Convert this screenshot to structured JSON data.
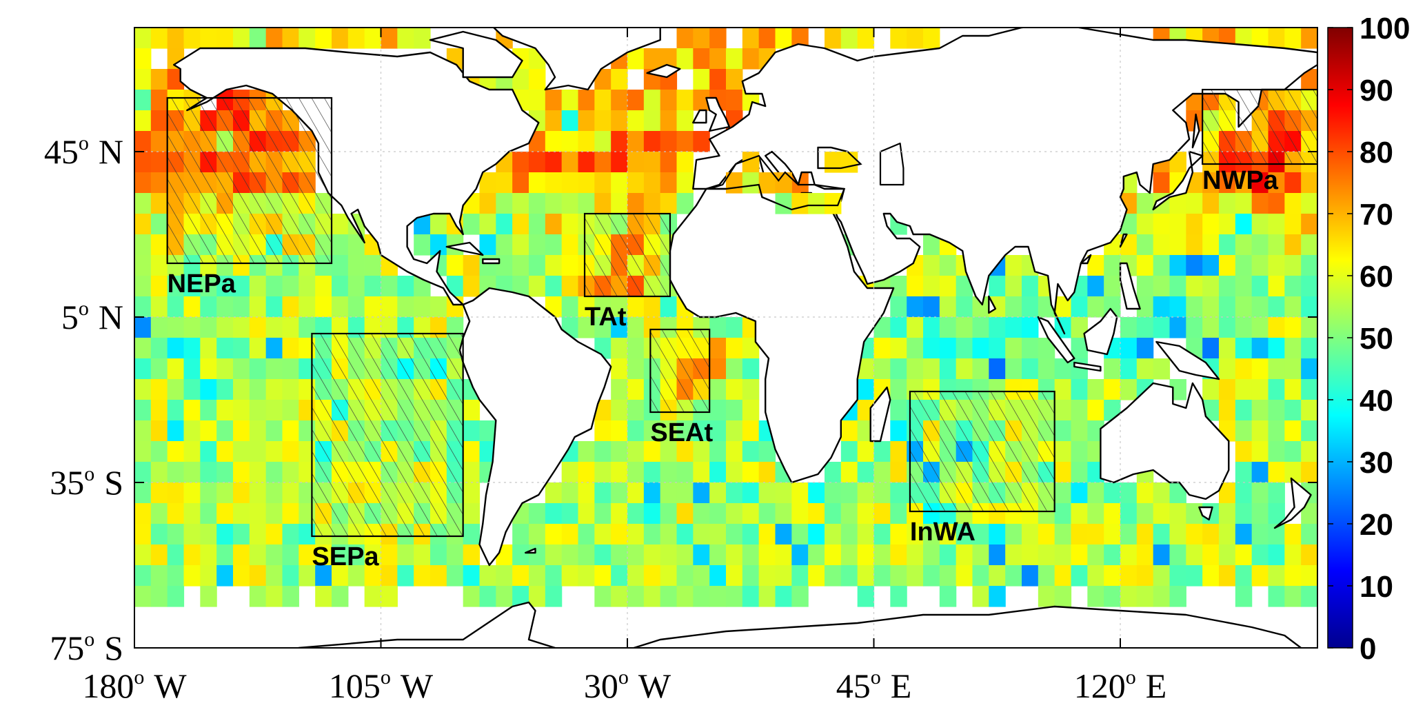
{
  "map": {
    "projection": "equirectangular",
    "lon_range": [
      -180,
      180
    ],
    "lat_range": [
      -75,
      75
    ],
    "x_ticks": [
      {
        "lon": -180,
        "deg": "180",
        "hemi": "W"
      },
      {
        "lon": -105,
        "deg": "105",
        "hemi": "W"
      },
      {
        "lon": -30,
        "deg": "30",
        "hemi": "W"
      },
      {
        "lon": 45,
        "deg": "45",
        "hemi": "E"
      },
      {
        "lon": 120,
        "deg": "120",
        "hemi": "E"
      }
    ],
    "y_ticks": [
      {
        "lat": 45,
        "deg": "45",
        "hemi": "N"
      },
      {
        "lat": 5,
        "deg": "5",
        "hemi": "N"
      },
      {
        "lat": -35,
        "deg": "35",
        "hemi": "S"
      },
      {
        "lat": -75,
        "deg": "75",
        "hemi": "S"
      }
    ],
    "degree_symbol": "o"
  },
  "colorbar": {
    "min": 0,
    "max": 100,
    "ticks": [
      "0",
      "10",
      "20",
      "30",
      "40",
      "50",
      "60",
      "70",
      "80",
      "90",
      "100"
    ],
    "colormap": "jet"
  },
  "regions": [
    {
      "name": "NEPa",
      "lon": [
        -170,
        -120
      ],
      "lat": [
        18,
        58
      ]
    },
    {
      "name": "TAt",
      "lon": [
        -43,
        -17
      ],
      "lat": [
        10,
        30
      ]
    },
    {
      "name": "SEAt",
      "lon": [
        -23,
        -5
      ],
      "lat": [
        -18,
        2
      ]
    },
    {
      "name": "SEPa",
      "lon": [
        -126,
        -80
      ],
      "lat": [
        -48,
        1
      ]
    },
    {
      "name": "InWA",
      "lon": [
        56,
        100
      ],
      "lat": [
        -42,
        -13
      ]
    },
    {
      "name": "NWPa",
      "lon": [
        145,
        180
      ],
      "lat": [
        42,
        60
      ]
    }
  ],
  "colors": {
    "land": "#ffffff",
    "coast": "#000000",
    "grid": "#c8c8c8"
  }
}
